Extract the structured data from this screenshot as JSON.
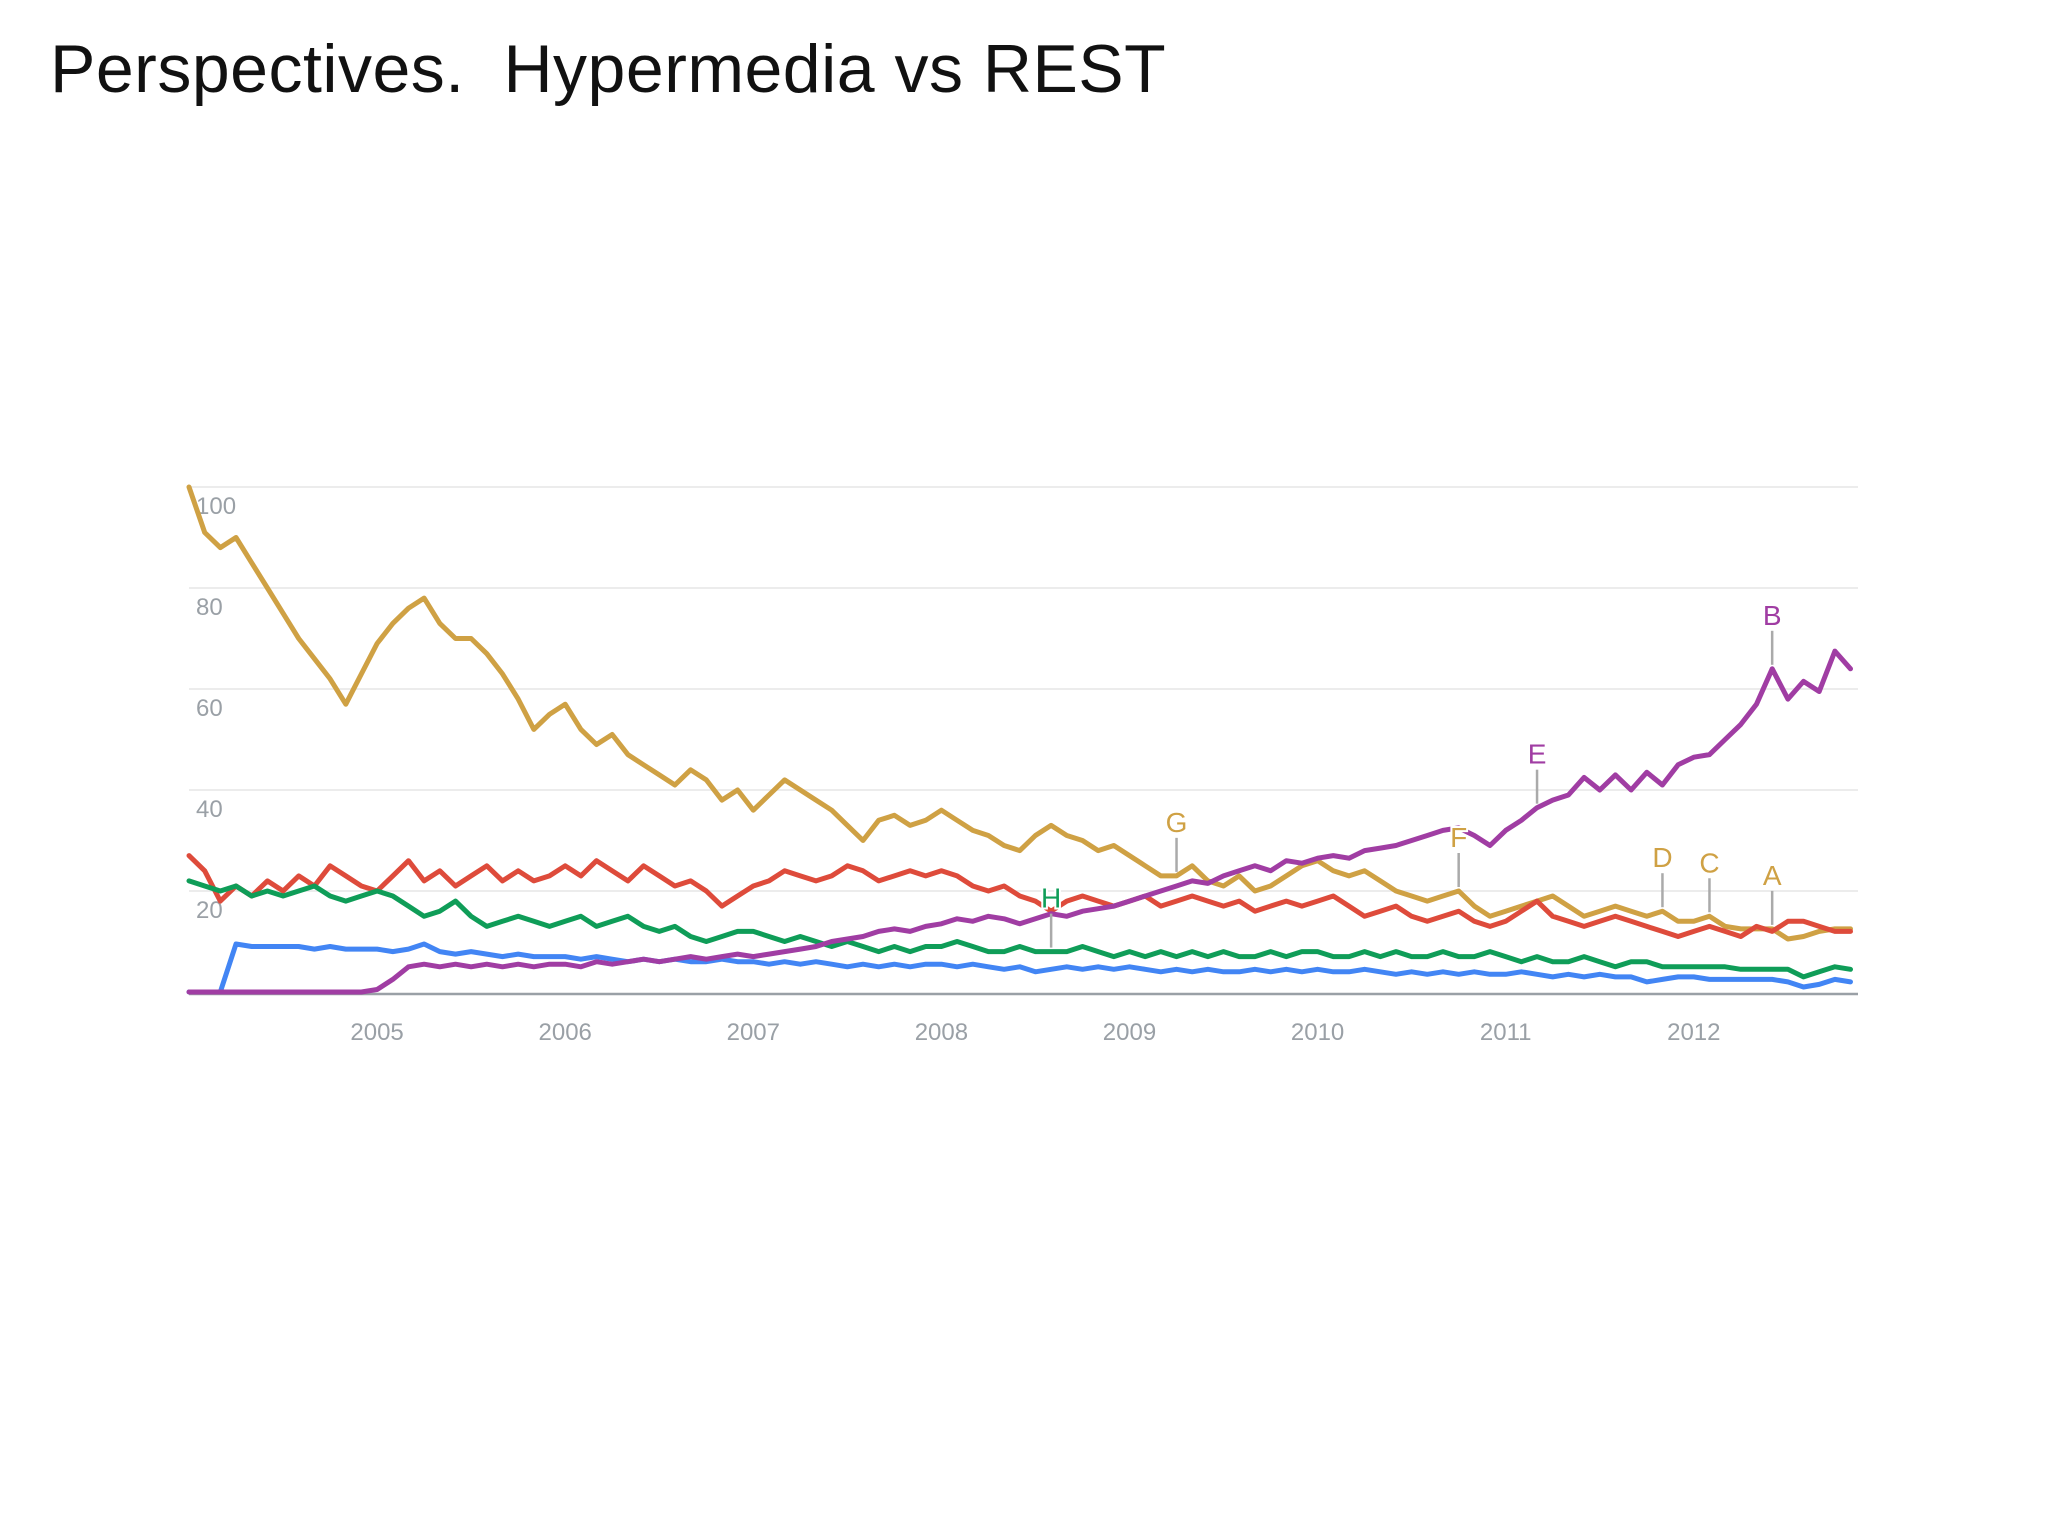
{
  "slide": {
    "title": "Perspectives.  Hypermedia vs REST"
  },
  "colors": {
    "background": "#ffffff",
    "title_text": "#111111",
    "gridline": "#ececec",
    "axis_line": "#9aa0a6",
    "tick_label": "#9aa0a6",
    "annotation_tick": "#aaaaaa",
    "gold": "#cfa144",
    "red": "#de4b3b",
    "green": "#0f9d58",
    "blue": "#4285f4",
    "purple": "#a03da3"
  },
  "chart_data": {
    "type": "line",
    "title": "",
    "xlabel": "",
    "ylabel": "",
    "x_start_year": 2004,
    "points_per_year": 12,
    "x_tick_labels": [
      "2005",
      "2006",
      "2007",
      "2008",
      "2009",
      "2010",
      "2011",
      "2012"
    ],
    "y_ticks": [
      20,
      40,
      60,
      80,
      100
    ],
    "ylim": [
      0,
      100
    ],
    "grid": true,
    "legend_position": "none",
    "series": [
      {
        "id": "gold",
        "color": "#cfa144",
        "values": [
          100,
          91,
          88,
          90,
          85,
          80,
          75,
          70,
          66,
          62,
          57,
          63,
          69,
          73,
          76,
          78,
          73,
          70,
          70,
          67,
          63,
          58,
          52,
          55,
          57,
          52,
          49,
          51,
          47,
          45,
          43,
          41,
          44,
          42,
          38,
          40,
          36,
          39,
          42,
          40,
          38,
          36,
          33,
          30,
          34,
          35,
          33,
          34,
          36,
          34,
          32,
          31,
          29,
          28,
          31,
          33,
          31,
          30,
          28,
          29,
          27,
          25,
          23,
          23,
          25,
          22,
          21,
          23,
          20,
          21,
          23,
          25,
          26,
          24,
          23,
          24,
          22,
          20,
          19,
          18,
          19,
          20,
          17,
          15,
          16,
          17,
          18,
          19,
          17,
          15,
          16,
          17,
          16,
          15,
          16,
          14,
          14,
          15,
          13,
          12.5,
          12.5,
          12.5,
          10.5,
          11,
          12,
          12.5,
          12.5
        ]
      },
      {
        "id": "red",
        "color": "#de4b3b",
        "values": [
          27,
          24,
          18,
          21,
          19,
          22,
          20,
          23,
          21,
          25,
          23,
          21,
          20,
          23,
          26,
          22,
          24,
          21,
          23,
          25,
          22,
          24,
          22,
          23,
          25,
          23,
          26,
          24,
          22,
          25,
          23,
          21,
          22,
          20,
          17,
          19,
          21,
          22,
          24,
          23,
          22,
          23,
          25,
          24,
          22,
          23,
          24,
          23,
          24,
          23,
          21,
          20,
          21,
          19,
          18,
          16,
          18,
          19,
          18,
          17,
          18,
          19,
          17,
          18,
          19,
          18,
          17,
          18,
          16,
          17,
          18,
          17,
          18,
          19,
          17,
          15,
          16,
          17,
          15,
          14,
          15,
          16,
          14,
          13,
          14,
          16,
          18,
          15,
          14,
          13,
          14,
          15,
          14,
          13,
          12,
          11,
          12,
          13,
          12,
          11,
          13,
          12,
          14,
          14,
          13,
          12,
          12
        ]
      },
      {
        "id": "green",
        "color": "#0f9d58",
        "values": [
          22,
          21,
          20,
          21,
          19,
          20,
          19,
          20,
          21,
          19,
          18,
          19,
          20,
          19,
          17,
          15,
          16,
          18,
          15,
          13,
          14,
          15,
          14,
          13,
          14,
          15,
          13,
          14,
          15,
          13,
          12,
          13,
          11,
          10,
          11,
          12,
          12,
          11,
          10,
          11,
          10,
          9,
          10,
          9,
          8,
          9,
          8,
          9,
          9,
          10,
          9,
          8,
          8,
          9,
          8,
          8,
          8,
          9,
          8,
          7,
          8,
          7,
          8,
          7,
          8,
          7,
          8,
          7,
          7,
          8,
          7,
          8,
          8,
          7,
          7,
          8,
          7,
          8,
          7,
          7,
          8,
          7,
          7,
          8,
          7,
          6,
          7,
          6,
          6,
          7,
          6,
          5,
          6,
          6,
          5,
          5,
          5,
          5,
          5,
          4.5,
          4.5,
          4.5,
          4.5,
          3,
          4,
          5,
          4.5
        ]
      },
      {
        "id": "blue",
        "color": "#4285f4",
        "values": [
          0,
          0,
          0,
          9.5,
          9,
          9,
          9,
          9,
          8.5,
          9,
          8.5,
          8.5,
          8.5,
          8,
          8.5,
          9.5,
          8,
          7.5,
          8,
          7.5,
          7,
          7.5,
          7,
          7,
          7,
          6.5,
          7,
          6.5,
          6,
          6.5,
          6,
          6.5,
          6,
          6,
          6.5,
          6,
          6,
          5.5,
          6,
          5.5,
          6,
          5.5,
          5,
          5.5,
          5,
          5.5,
          5,
          5.5,
          5.5,
          5,
          5.5,
          5,
          4.5,
          5,
          4,
          4.5,
          5,
          4.5,
          5,
          4.5,
          5,
          4.5,
          4,
          4.5,
          4,
          4.5,
          4,
          4,
          4.5,
          4,
          4.5,
          4,
          4.5,
          4,
          4,
          4.5,
          4,
          3.5,
          4,
          3.5,
          4,
          3.5,
          4,
          3.5,
          3.5,
          4,
          3.5,
          3,
          3.5,
          3,
          3.5,
          3,
          3,
          2,
          2.5,
          3,
          3,
          2.5,
          2.5,
          2.5,
          2.5,
          2.5,
          2,
          1,
          1.5,
          2.5,
          2
        ]
      },
      {
        "id": "purple",
        "color": "#a03da3",
        "values": [
          0,
          0,
          0,
          0,
          0,
          0,
          0,
          0,
          0,
          0,
          0,
          0,
          0.5,
          2.5,
          5,
          5.5,
          5,
          5.5,
          5,
          5.5,
          5,
          5.5,
          5,
          5.5,
          5.5,
          5,
          6,
          5.5,
          6,
          6.5,
          6,
          6.5,
          7,
          6.5,
          7,
          7.5,
          7,
          7.5,
          8,
          8.5,
          9,
          10,
          10.5,
          11,
          12,
          12.5,
          12,
          13,
          13.5,
          14.5,
          14,
          15,
          14.5,
          13.5,
          14.5,
          15.5,
          15,
          16,
          16.5,
          17,
          18,
          19,
          20,
          21,
          22,
          21.5,
          23,
          24,
          25,
          24,
          26,
          25.5,
          26.5,
          27,
          26.5,
          28,
          28.5,
          29,
          30,
          31,
          32,
          32.5,
          31,
          29,
          32,
          34,
          36.5,
          38,
          39,
          42.5,
          40,
          43,
          40,
          43.5,
          41,
          45,
          46.5,
          47,
          50,
          53,
          57,
          64,
          58,
          61.5,
          59.5,
          67.5,
          64
        ]
      }
    ],
    "annotations": [
      {
        "label": "A",
        "series": "gold",
        "month_index": 101
      },
      {
        "label": "B",
        "series": "purple",
        "month_index": 101
      },
      {
        "label": "C",
        "series": "gold",
        "month_index": 97
      },
      {
        "label": "D",
        "series": "gold",
        "month_index": 94
      },
      {
        "label": "E",
        "series": "purple",
        "month_index": 86
      },
      {
        "label": "F",
        "series": "gold",
        "month_index": 81
      },
      {
        "label": "G",
        "series": "gold",
        "month_index": 63
      },
      {
        "label": "H",
        "series": "green",
        "month_index": 55
      }
    ]
  }
}
